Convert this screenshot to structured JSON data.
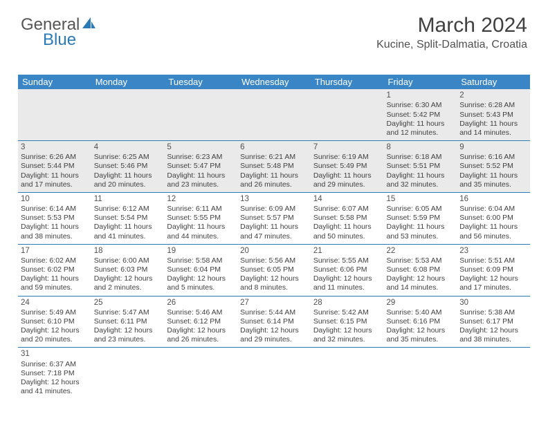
{
  "logo": {
    "part1": "General",
    "part2": "Blue"
  },
  "header": {
    "month_title": "March 2024",
    "location": "Kucine, Split-Dalmatia, Croatia"
  },
  "colors": {
    "header_bg": "#3a85c6",
    "header_text": "#ffffff",
    "row_border": "#2a7ab8",
    "empty_bg": "#eaeaea",
    "text": "#404040"
  },
  "weekdays": [
    "Sunday",
    "Monday",
    "Tuesday",
    "Wednesday",
    "Thursday",
    "Friday",
    "Saturday"
  ],
  "weeks": [
    [
      null,
      null,
      null,
      null,
      null,
      {
        "d": "1",
        "sr": "Sunrise: 6:30 AM",
        "ss": "Sunset: 5:42 PM",
        "dl1": "Daylight: 11 hours",
        "dl2": "and 12 minutes."
      },
      {
        "d": "2",
        "sr": "Sunrise: 6:28 AM",
        "ss": "Sunset: 5:43 PM",
        "dl1": "Daylight: 11 hours",
        "dl2": "and 14 minutes."
      }
    ],
    [
      {
        "d": "3",
        "sr": "Sunrise: 6:26 AM",
        "ss": "Sunset: 5:44 PM",
        "dl1": "Daylight: 11 hours",
        "dl2": "and 17 minutes."
      },
      {
        "d": "4",
        "sr": "Sunrise: 6:25 AM",
        "ss": "Sunset: 5:46 PM",
        "dl1": "Daylight: 11 hours",
        "dl2": "and 20 minutes."
      },
      {
        "d": "5",
        "sr": "Sunrise: 6:23 AM",
        "ss": "Sunset: 5:47 PM",
        "dl1": "Daylight: 11 hours",
        "dl2": "and 23 minutes."
      },
      {
        "d": "6",
        "sr": "Sunrise: 6:21 AM",
        "ss": "Sunset: 5:48 PM",
        "dl1": "Daylight: 11 hours",
        "dl2": "and 26 minutes."
      },
      {
        "d": "7",
        "sr": "Sunrise: 6:19 AM",
        "ss": "Sunset: 5:49 PM",
        "dl1": "Daylight: 11 hours",
        "dl2": "and 29 minutes."
      },
      {
        "d": "8",
        "sr": "Sunrise: 6:18 AM",
        "ss": "Sunset: 5:51 PM",
        "dl1": "Daylight: 11 hours",
        "dl2": "and 32 minutes."
      },
      {
        "d": "9",
        "sr": "Sunrise: 6:16 AM",
        "ss": "Sunset: 5:52 PM",
        "dl1": "Daylight: 11 hours",
        "dl2": "and 35 minutes."
      }
    ],
    [
      {
        "d": "10",
        "sr": "Sunrise: 6:14 AM",
        "ss": "Sunset: 5:53 PM",
        "dl1": "Daylight: 11 hours",
        "dl2": "and 38 minutes."
      },
      {
        "d": "11",
        "sr": "Sunrise: 6:12 AM",
        "ss": "Sunset: 5:54 PM",
        "dl1": "Daylight: 11 hours",
        "dl2": "and 41 minutes."
      },
      {
        "d": "12",
        "sr": "Sunrise: 6:11 AM",
        "ss": "Sunset: 5:55 PM",
        "dl1": "Daylight: 11 hours",
        "dl2": "and 44 minutes."
      },
      {
        "d": "13",
        "sr": "Sunrise: 6:09 AM",
        "ss": "Sunset: 5:57 PM",
        "dl1": "Daylight: 11 hours",
        "dl2": "and 47 minutes."
      },
      {
        "d": "14",
        "sr": "Sunrise: 6:07 AM",
        "ss": "Sunset: 5:58 PM",
        "dl1": "Daylight: 11 hours",
        "dl2": "and 50 minutes."
      },
      {
        "d": "15",
        "sr": "Sunrise: 6:05 AM",
        "ss": "Sunset: 5:59 PM",
        "dl1": "Daylight: 11 hours",
        "dl2": "and 53 minutes."
      },
      {
        "d": "16",
        "sr": "Sunrise: 6:04 AM",
        "ss": "Sunset: 6:00 PM",
        "dl1": "Daylight: 11 hours",
        "dl2": "and 56 minutes."
      }
    ],
    [
      {
        "d": "17",
        "sr": "Sunrise: 6:02 AM",
        "ss": "Sunset: 6:02 PM",
        "dl1": "Daylight: 11 hours",
        "dl2": "and 59 minutes."
      },
      {
        "d": "18",
        "sr": "Sunrise: 6:00 AM",
        "ss": "Sunset: 6:03 PM",
        "dl1": "Daylight: 12 hours",
        "dl2": "and 2 minutes."
      },
      {
        "d": "19",
        "sr": "Sunrise: 5:58 AM",
        "ss": "Sunset: 6:04 PM",
        "dl1": "Daylight: 12 hours",
        "dl2": "and 5 minutes."
      },
      {
        "d": "20",
        "sr": "Sunrise: 5:56 AM",
        "ss": "Sunset: 6:05 PM",
        "dl1": "Daylight: 12 hours",
        "dl2": "and 8 minutes."
      },
      {
        "d": "21",
        "sr": "Sunrise: 5:55 AM",
        "ss": "Sunset: 6:06 PM",
        "dl1": "Daylight: 12 hours",
        "dl2": "and 11 minutes."
      },
      {
        "d": "22",
        "sr": "Sunrise: 5:53 AM",
        "ss": "Sunset: 6:08 PM",
        "dl1": "Daylight: 12 hours",
        "dl2": "and 14 minutes."
      },
      {
        "d": "23",
        "sr": "Sunrise: 5:51 AM",
        "ss": "Sunset: 6:09 PM",
        "dl1": "Daylight: 12 hours",
        "dl2": "and 17 minutes."
      }
    ],
    [
      {
        "d": "24",
        "sr": "Sunrise: 5:49 AM",
        "ss": "Sunset: 6:10 PM",
        "dl1": "Daylight: 12 hours",
        "dl2": "and 20 minutes."
      },
      {
        "d": "25",
        "sr": "Sunrise: 5:47 AM",
        "ss": "Sunset: 6:11 PM",
        "dl1": "Daylight: 12 hours",
        "dl2": "and 23 minutes."
      },
      {
        "d": "26",
        "sr": "Sunrise: 5:46 AM",
        "ss": "Sunset: 6:12 PM",
        "dl1": "Daylight: 12 hours",
        "dl2": "and 26 minutes."
      },
      {
        "d": "27",
        "sr": "Sunrise: 5:44 AM",
        "ss": "Sunset: 6:14 PM",
        "dl1": "Daylight: 12 hours",
        "dl2": "and 29 minutes."
      },
      {
        "d": "28",
        "sr": "Sunrise: 5:42 AM",
        "ss": "Sunset: 6:15 PM",
        "dl1": "Daylight: 12 hours",
        "dl2": "and 32 minutes."
      },
      {
        "d": "29",
        "sr": "Sunrise: 5:40 AM",
        "ss": "Sunset: 6:16 PM",
        "dl1": "Daylight: 12 hours",
        "dl2": "and 35 minutes."
      },
      {
        "d": "30",
        "sr": "Sunrise: 5:38 AM",
        "ss": "Sunset: 6:17 PM",
        "dl1": "Daylight: 12 hours",
        "dl2": "and 38 minutes."
      }
    ],
    [
      {
        "d": "31",
        "sr": "Sunrise: 6:37 AM",
        "ss": "Sunset: 7:18 PM",
        "dl1": "Daylight: 12 hours",
        "dl2": "and 41 minutes."
      },
      null,
      null,
      null,
      null,
      null,
      null
    ]
  ]
}
